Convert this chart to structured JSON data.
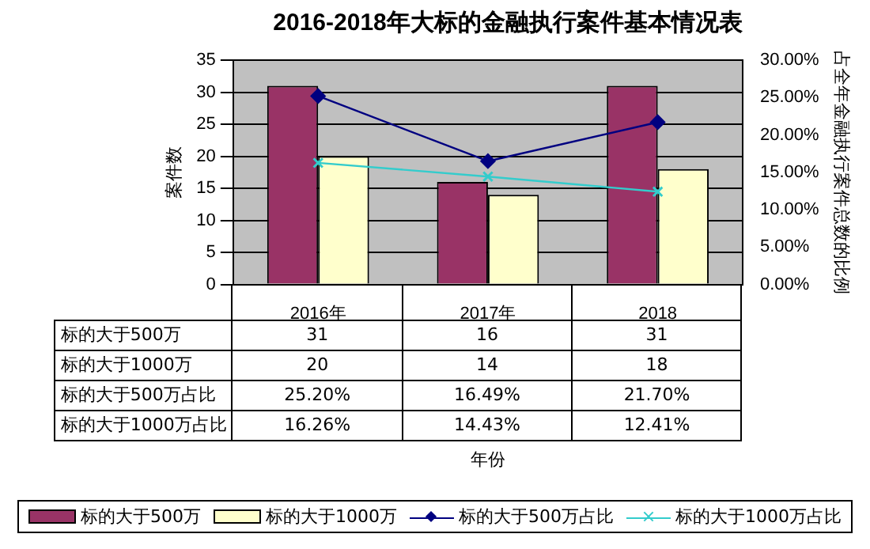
{
  "chart_data": {
    "type": "bar",
    "title": "2016-2018年大标的金融执行案件基本情况表",
    "annotations": [
      "年份"
    ],
    "ylabel": "案件数",
    "y2label": "占全年金融执行案件总数的比例",
    "categories": [
      "2016年",
      "2017年",
      "2018"
    ],
    "series": [
      {
        "name": "标的大于500万",
        "color": "#993366",
        "values": [
          31,
          16,
          31
        ],
        "value_labels": [
          "31",
          "16",
          "31"
        ]
      },
      {
        "name": "标的大于1000万",
        "color": "#ffffcc",
        "values": [
          20,
          14,
          18
        ],
        "value_labels": [
          "20",
          "14",
          "18"
        ]
      },
      {
        "name": "标的大于500万占比",
        "type": "line",
        "axis": "y2",
        "marker": "diamond",
        "color": "#000080",
        "values": [
          25.2,
          16.49,
          21.7
        ],
        "value_labels": [
          "25.20%",
          "16.49%",
          "21.70%"
        ]
      },
      {
        "name": "标的大于1000万占比",
        "type": "line",
        "axis": "y2",
        "marker": "cross",
        "color": "#33cccc",
        "values": [
          16.26,
          14.43,
          12.41
        ],
        "value_labels": [
          "16.26%",
          "14.43%",
          "12.41%"
        ]
      }
    ],
    "ylim": [
      0,
      35
    ],
    "yticks": [
      0,
      5,
      10,
      15,
      20,
      25,
      30,
      35
    ],
    "y2lim": [
      0,
      30
    ],
    "y2ticks": [
      {
        "value": 0,
        "label": "0.00%"
      },
      {
        "value": 5,
        "label": "5.00%"
      },
      {
        "value": 10,
        "label": "10.00%"
      },
      {
        "value": 15,
        "label": "15.00%"
      },
      {
        "value": 20,
        "label": "20.00%"
      },
      {
        "value": 25,
        "label": "25.00%"
      },
      {
        "value": 30,
        "label": "30.00%"
      }
    ],
    "grid": "y",
    "legend": "bottom"
  }
}
